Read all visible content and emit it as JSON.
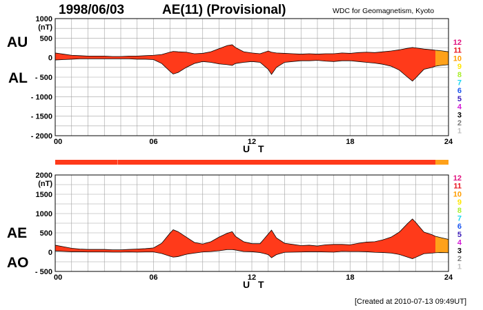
{
  "header": {
    "date": "1998/06/03",
    "title": "AE(11) (Provisional)",
    "source": "WDC for Geomagnetism, Kyoto"
  },
  "footer": {
    "created": "[Created at 2010-07-13 09:49UT]"
  },
  "side_labels": {
    "top_upper": "AU",
    "top_lower": "AL",
    "bottom_upper": "AE",
    "bottom_lower": "AO"
  },
  "colors": {
    "fill_main": "#ff3a1a",
    "fill_end": "#ffa11a",
    "grid": "#a0a0a0"
  },
  "station_legend": [
    {
      "label": "12",
      "color": "#e0117f"
    },
    {
      "label": "11",
      "color": "#e8141e"
    },
    {
      "label": "10",
      "color": "#ff9d00"
    },
    {
      "label": "9",
      "color": "#ffe600"
    },
    {
      "label": "8",
      "color": "#a8ee2a"
    },
    {
      "label": "7",
      "color": "#1ad6f0"
    },
    {
      "label": "6",
      "color": "#1a55f0"
    },
    {
      "label": "5",
      "color": "#3a1ab8"
    },
    {
      "label": "4",
      "color": "#d21ad6"
    },
    {
      "label": "3",
      "color": "#000000"
    },
    {
      "label": "2",
      "color": "#7a7a7a"
    },
    {
      "label": "1",
      "color": "#c0c0c0"
    }
  ],
  "station_bar": {
    "segments": [
      {
        "start": 0,
        "end": 23.2,
        "stations": 11
      },
      {
        "start": 23.2,
        "end": 24,
        "stations": 10
      }
    ]
  },
  "chart_data": [
    {
      "type": "area",
      "ylabel": "(nT)",
      "xlabel": "U T",
      "xlim": [
        0,
        24
      ],
      "ylim": [
        -2000,
        1000
      ],
      "x_ticks": [
        "00",
        "06",
        "12",
        "18",
        "24"
      ],
      "y_ticks": [
        "1000",
        "500",
        "0",
        "- 500",
        "- 1000",
        "- 1500",
        "- 2000"
      ],
      "grid": true,
      "station_change_hour": 23.2,
      "x": [
        0,
        0.5,
        1,
        1.5,
        2,
        2.5,
        3,
        3.5,
        4,
        4.5,
        5,
        5.5,
        6,
        6.5,
        7,
        7.2,
        7.5,
        8,
        8.5,
        9,
        9.5,
        10,
        10.5,
        10.8,
        11,
        11.5,
        12,
        12.5,
        13,
        13.2,
        13.5,
        14,
        14.5,
        15,
        15.5,
        16,
        16.5,
        17,
        17.5,
        18,
        18.5,
        19,
        19.5,
        20,
        20.5,
        21,
        21.5,
        21.8,
        22,
        22.5,
        23,
        23.2,
        23.5,
        24
      ],
      "series": [
        {
          "name": "AU",
          "values": [
            120,
            90,
            60,
            50,
            40,
            40,
            40,
            30,
            30,
            40,
            40,
            50,
            60,
            80,
            140,
            160,
            150,
            140,
            100,
            110,
            150,
            230,
            310,
            330,
            260,
            150,
            120,
            100,
            170,
            140,
            120,
            110,
            100,
            90,
            100,
            90,
            100,
            100,
            120,
            110,
            130,
            140,
            130,
            150,
            170,
            200,
            240,
            260,
            250,
            220,
            200,
            190,
            180,
            150
          ]
        },
        {
          "name": "AL",
          "values": [
            -60,
            -50,
            -40,
            -30,
            -30,
            -30,
            -30,
            -30,
            -30,
            -30,
            -40,
            -40,
            -50,
            -150,
            -350,
            -420,
            -380,
            -250,
            -150,
            -100,
            -120,
            -160,
            -180,
            -200,
            -150,
            -120,
            -100,
            -120,
            -300,
            -430,
            -250,
            -120,
            -100,
            -80,
            -80,
            -70,
            -90,
            -100,
            -80,
            -80,
            -100,
            -120,
            -140,
            -170,
            -220,
            -320,
            -500,
            -600,
            -520,
            -300,
            -250,
            -220,
            -200,
            -180
          ]
        }
      ]
    },
    {
      "type": "area",
      "ylabel": "(nT)",
      "xlabel": "U T",
      "xlim": [
        0,
        24
      ],
      "ylim": [
        -500,
        2000
      ],
      "x_ticks": [
        "00",
        "06",
        "12",
        "18",
        "24"
      ],
      "y_ticks": [
        "2000",
        "1500",
        "1000",
        "500",
        "0",
        "- 500"
      ],
      "grid": true,
      "station_change_hour": 23.2,
      "x": [
        0,
        0.5,
        1,
        1.5,
        2,
        2.5,
        3,
        3.5,
        4,
        4.5,
        5,
        5.5,
        6,
        6.5,
        7,
        7.2,
        7.5,
        8,
        8.5,
        9,
        9.5,
        10,
        10.5,
        10.8,
        11,
        11.5,
        12,
        12.5,
        13,
        13.2,
        13.5,
        14,
        14.5,
        15,
        15.5,
        16,
        16.5,
        17,
        17.5,
        18,
        18.5,
        19,
        19.5,
        20,
        20.5,
        21,
        21.5,
        21.8,
        22,
        22.5,
        23,
        23.2,
        23.5,
        24
      ],
      "series": [
        {
          "name": "AE",
          "values": [
            180,
            140,
            100,
            80,
            70,
            70,
            70,
            60,
            60,
            70,
            80,
            90,
            110,
            230,
            490,
            580,
            530,
            390,
            250,
            210,
            270,
            390,
            490,
            530,
            410,
            270,
            220,
            220,
            470,
            570,
            370,
            230,
            200,
            170,
            180,
            160,
            190,
            200,
            200,
            190,
            230,
            260,
            270,
            320,
            390,
            520,
            740,
            860,
            770,
            520,
            450,
            410,
            380,
            330
          ]
        },
        {
          "name": "AO",
          "values": [
            30,
            20,
            10,
            10,
            5,
            5,
            5,
            0,
            0,
            5,
            0,
            5,
            5,
            -35,
            -105,
            -130,
            -115,
            -55,
            -25,
            5,
            15,
            35,
            65,
            65,
            55,
            15,
            10,
            -10,
            -65,
            -145,
            -65,
            -5,
            0,
            5,
            10,
            10,
            5,
            0,
            20,
            15,
            15,
            10,
            -5,
            -10,
            -25,
            -60,
            -130,
            -170,
            -135,
            -40,
            -25,
            -15,
            -10,
            -15
          ]
        }
      ]
    }
  ]
}
